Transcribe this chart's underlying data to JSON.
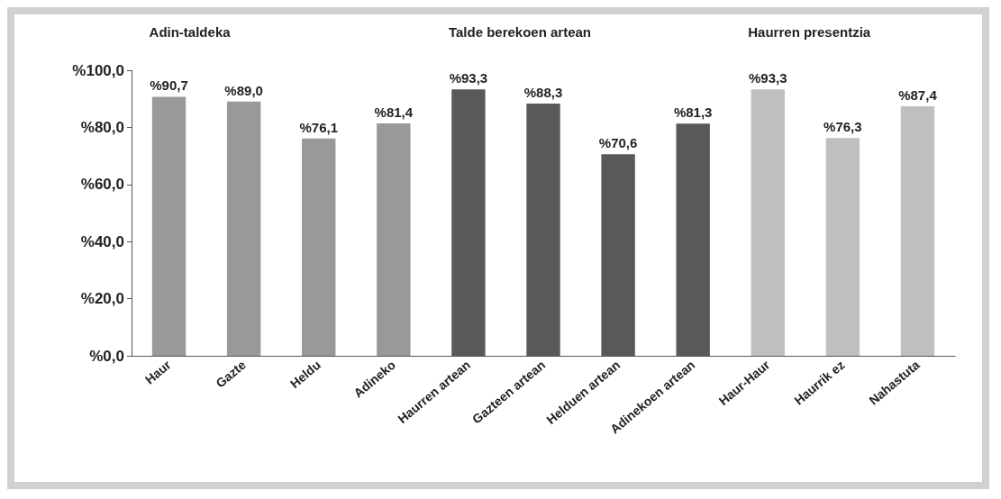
{
  "chart_data": {
    "type": "bar",
    "categories": [
      "Haur",
      "Gazte",
      "Heldu",
      "Adineko",
      "Haurren artean",
      "Gazteen artean",
      "Helduen artean",
      "Adinekoen artean",
      "Haur-Haur",
      "Haurrik ez",
      "Nahastuta"
    ],
    "values": [
      90.7,
      89.0,
      76.1,
      81.4,
      93.3,
      88.3,
      70.6,
      81.3,
      93.3,
      76.3,
      87.4
    ],
    "colors": [
      "#999999",
      "#999999",
      "#999999",
      "#999999",
      "#58595b",
      "#58595b",
      "#58595b",
      "#58595b",
      "#bfbfbf",
      "#bfbfbf",
      "#bfbfbf"
    ],
    "value_labels": [
      "%90,7",
      "%89,0",
      "%76,1",
      "%81,4",
      "%93,3",
      "%88,3",
      "%70,6",
      "%81,3",
      "%93,3",
      "%76,3",
      "%87,4"
    ],
    "ylim": [
      0,
      100
    ],
    "yticks": [
      {
        "value": 0,
        "label": "%0,0"
      },
      {
        "value": 20,
        "label": "%20,0"
      },
      {
        "value": 40,
        "label": "%40,0"
      },
      {
        "value": 60,
        "label": "%60,0"
      },
      {
        "value": 80,
        "label": "%80,0"
      },
      {
        "value": 100,
        "label": "%100,0"
      }
    ],
    "annotations": [
      "Adin-taldeka",
      "Talde berekoen artean",
      "Haurren presentzia"
    ],
    "grid": false
  }
}
